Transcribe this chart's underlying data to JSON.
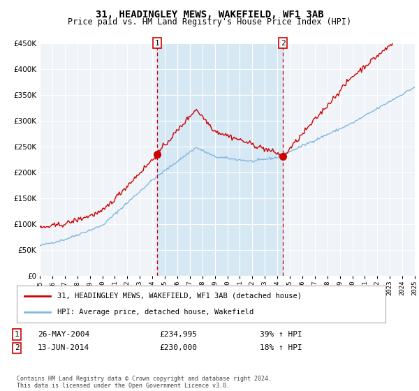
{
  "title": "31, HEADINGLEY MEWS, WAKEFIELD, WF1 3AB",
  "subtitle": "Price paid vs. HM Land Registry's House Price Index (HPI)",
  "background_color": "#ffffff",
  "plot_bg_color": "#f0f4f8",
  "grid_color": "#ffffff",
  "ylim": [
    0,
    450000
  ],
  "yticks": [
    0,
    50000,
    100000,
    150000,
    200000,
    250000,
    300000,
    350000,
    400000,
    450000
  ],
  "ytick_labels": [
    "£0",
    "£50K",
    "£100K",
    "£150K",
    "£200K",
    "£250K",
    "£300K",
    "£350K",
    "£400K",
    "£450K"
  ],
  "x_start_year": 1995,
  "x_end_year": 2025,
  "marker1_date": 2004.38,
  "marker1_value": 234995,
  "marker2_date": 2014.45,
  "marker2_value": 230000,
  "shade_color": "#cde4f5",
  "shade_alpha": 0.7,
  "line1_color": "#cc0000",
  "line2_color": "#7fb8e0",
  "dashed_line_color": "#cc0000",
  "footer_text": "Contains HM Land Registry data © Crown copyright and database right 2024.\nThis data is licensed under the Open Government Licence v3.0.",
  "legend1_label": "31, HEADINGLEY MEWS, WAKEFIELD, WF1 3AB (detached house)",
  "legend2_label": "HPI: Average price, detached house, Wakefield",
  "annotation1_date": "26-MAY-2004",
  "annotation1_price": "£234,995",
  "annotation1_hpi": "39% ↑ HPI",
  "annotation2_date": "13-JUN-2014",
  "annotation2_price": "£230,000",
  "annotation2_hpi": "18% ↑ HPI",
  "title_fontsize": 10,
  "subtitle_fontsize": 8.5
}
